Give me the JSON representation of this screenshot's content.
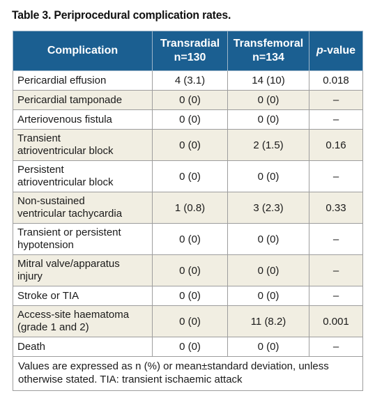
{
  "title": "Table 3. Periprocedural complication rates.",
  "header": {
    "complication": "Complication",
    "transradial": "Transradial",
    "transradial_n": "n=130",
    "transfemoral": "Transfemoral",
    "transfemoral_n": "n=134",
    "pvalue_prefix": "p",
    "pvalue_suffix": "-value"
  },
  "rows": [
    {
      "label": "Pericardial effusion",
      "transradial": "4 (3.1)",
      "transfemoral": "14 (10)",
      "p": "0.018"
    },
    {
      "label": "Pericardial tamponade",
      "transradial": "0 (0)",
      "transfemoral": "0 (0)",
      "p": "–"
    },
    {
      "label": "Arteriovenous fistula",
      "transradial": "0 (0)",
      "transfemoral": "0 (0)",
      "p": "–"
    },
    {
      "label_line1": "Transient",
      "label_line2": "atrioventricular block",
      "transradial": "0 (0)",
      "transfemoral": "2 (1.5)",
      "p": "0.16"
    },
    {
      "label_line1": "Persistent",
      "label_line2": "atrioventricular block",
      "transradial": "0 (0)",
      "transfemoral": "0 (0)",
      "p": "–"
    },
    {
      "label_line1": "Non-sustained",
      "label_line2": "ventricular tachycardia",
      "transradial": "1 (0.8)",
      "transfemoral": "3 (2.3)",
      "p": "0.33"
    },
    {
      "label_line1": "Transient or persistent",
      "label_line2": "hypotension",
      "transradial": "0 (0)",
      "transfemoral": "0 (0)",
      "p": "–"
    },
    {
      "label_line1": "Mitral valve/apparatus",
      "label_line2": "injury",
      "transradial": "0 (0)",
      "transfemoral": "0 (0)",
      "p": "–"
    },
    {
      "label": "Stroke or TIA",
      "transradial": "0 (0)",
      "transfemoral": "0 (0)",
      "p": "–"
    },
    {
      "label_line1": "Access-site haematoma",
      "label_line2": "(grade 1 and 2)",
      "transradial": "0 (0)",
      "transfemoral": "11 (8.2)",
      "p": "0.001"
    },
    {
      "label": "Death",
      "transradial": "0 (0)",
      "transfemoral": "0 (0)",
      "p": "–"
    }
  ],
  "footnote_line1": "Values are expressed as n (%) or mean±standard deviation, unless",
  "footnote_line2": "otherwise stated. TIA: transient ischaemic attack",
  "colors": {
    "header_bg": "#1b5f91",
    "header_text": "#ffffff",
    "alt_row_bg": "#f1eee2",
    "border": "#9d9d9d"
  }
}
